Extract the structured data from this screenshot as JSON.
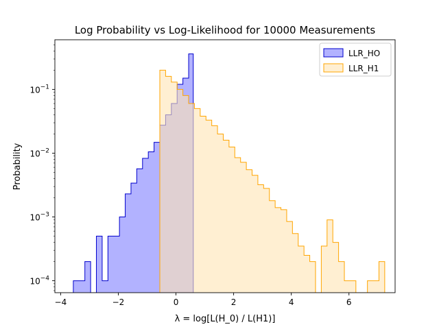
{
  "chart_data": {
    "type": "histogram",
    "title": "Log Probability vs Log-Likelihood for 10000 Measurements",
    "xlabel": "λ = log[L(H_0) / L(H1)]",
    "ylabel": "Probability",
    "xlim": [
      -4.2,
      7.6
    ],
    "ylim": [
      6.5e-05,
      0.6
    ],
    "yscale": "log",
    "xticks": [
      -4,
      -2,
      0,
      2,
      4,
      6
    ],
    "xtick_labels": [
      "−4",
      "−2",
      "0",
      "2",
      "4",
      "6"
    ],
    "yticks": [
      0.0001,
      0.001,
      0.01,
      0.1
    ],
    "ytick_labels": [
      {
        "base": "10",
        "exp": "−4"
      },
      {
        "base": "10",
        "exp": "−3"
      },
      {
        "base": "10",
        "exp": "−2"
      },
      {
        "base": "10",
        "exp": "−1"
      }
    ],
    "grid": false,
    "legend_position": "top-right",
    "series": [
      {
        "name": "LLR_HO",
        "fill": "#7f7fff",
        "edge": "#0000cc",
        "bin_edges": [
          -3.56,
          -3.36,
          -3.16,
          -2.96,
          -2.76,
          -2.56,
          -2.36,
          -2.16,
          -1.96,
          -1.76,
          -1.56,
          -1.36,
          -1.16,
          -0.96,
          -0.76,
          -0.56,
          -0.36,
          -0.16,
          0.04,
          0.24,
          0.44,
          0.6
        ],
        "values": [
          0.0001,
          0.0001,
          0.0002,
          0.0,
          0.0005,
          0.0001,
          0.0005,
          0.0005,
          0.001,
          0.0023,
          0.0034,
          0.0057,
          0.0083,
          0.0105,
          0.0148,
          0.0275,
          0.04,
          0.06,
          0.12,
          0.15,
          0.36
        ]
      },
      {
        "name": "LLR_H1",
        "fill": "#ffe5b4",
        "edge": "#ffa500",
        "bin_edges": [
          -0.56,
          -0.36,
          -0.16,
          0.04,
          0.24,
          0.44,
          0.64,
          0.84,
          1.04,
          1.24,
          1.44,
          1.64,
          1.84,
          2.04,
          2.24,
          2.44,
          2.64,
          2.84,
          3.04,
          3.24,
          3.44,
          3.64,
          3.84,
          4.04,
          4.24,
          4.44,
          4.64,
          4.84,
          5.04,
          5.24,
          5.44,
          5.64,
          5.84,
          6.04,
          6.24,
          6.44,
          6.64,
          6.84,
          7.04,
          7.24
        ],
        "values": [
          0.2,
          0.16,
          0.13,
          0.1,
          0.08,
          0.06,
          0.05,
          0.038,
          0.033,
          0.027,
          0.02,
          0.016,
          0.0125,
          0.0085,
          0.0072,
          0.0055,
          0.0045,
          0.0032,
          0.0028,
          0.0018,
          0.0014,
          0.0013,
          0.00085,
          0.00055,
          0.00035,
          0.00025,
          0.0002,
          0.0,
          0.00035,
          0.0009,
          0.0004,
          0.0002,
          0.0001,
          0.0001,
          0.0,
          0.0,
          0.0001,
          0.0001,
          0.0002
        ]
      }
    ]
  }
}
